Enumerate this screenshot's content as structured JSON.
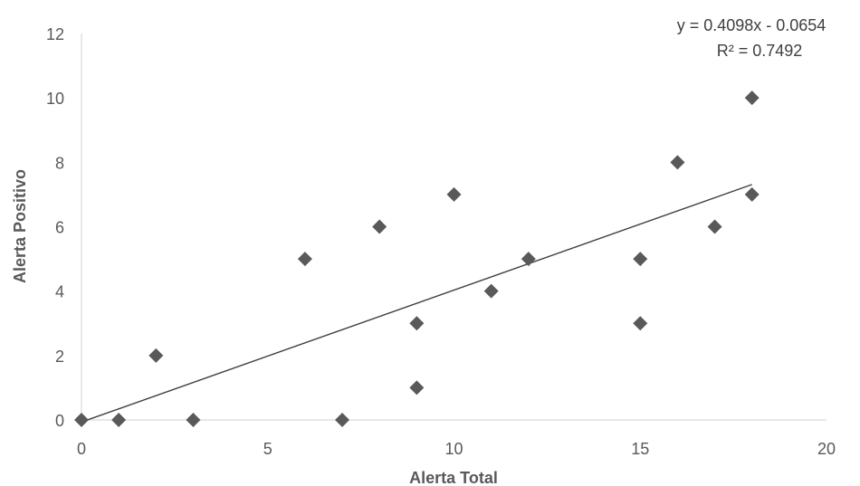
{
  "chart_data": {
    "type": "scatter",
    "xlabel": "Alerta Total",
    "ylabel": "Alerta Positivo",
    "xlim": [
      0,
      20
    ],
    "ylim": [
      0,
      12
    ],
    "x_ticks": [
      0,
      5,
      10,
      15,
      20
    ],
    "y_ticks": [
      0,
      2,
      4,
      6,
      8,
      10,
      12
    ],
    "grid": false,
    "marker": "diamond",
    "colors": {
      "marker": "#595959",
      "trendline": "#404040",
      "text": "#595959"
    },
    "points": [
      {
        "x": 0,
        "y": 0
      },
      {
        "x": 1,
        "y": 0
      },
      {
        "x": 2,
        "y": 2
      },
      {
        "x": 3,
        "y": 0
      },
      {
        "x": 6,
        "y": 5
      },
      {
        "x": 7,
        "y": 0
      },
      {
        "x": 8,
        "y": 6
      },
      {
        "x": 9,
        "y": 3
      },
      {
        "x": 9,
        "y": 1
      },
      {
        "x": 10,
        "y": 7
      },
      {
        "x": 11,
        "y": 4
      },
      {
        "x": 12,
        "y": 5
      },
      {
        "x": 15,
        "y": 5
      },
      {
        "x": 15,
        "y": 3
      },
      {
        "x": 16,
        "y": 8
      },
      {
        "x": 17,
        "y": 6
      },
      {
        "x": 18,
        "y": 10
      },
      {
        "x": 18,
        "y": 7
      }
    ],
    "trendline": {
      "type": "linear",
      "slope": 0.4098,
      "intercept": -0.0654,
      "x_range": [
        0,
        18
      ],
      "equation_label": "y = 0.4098x - 0.0654",
      "r2_label": "R² = 0.7492"
    }
  }
}
